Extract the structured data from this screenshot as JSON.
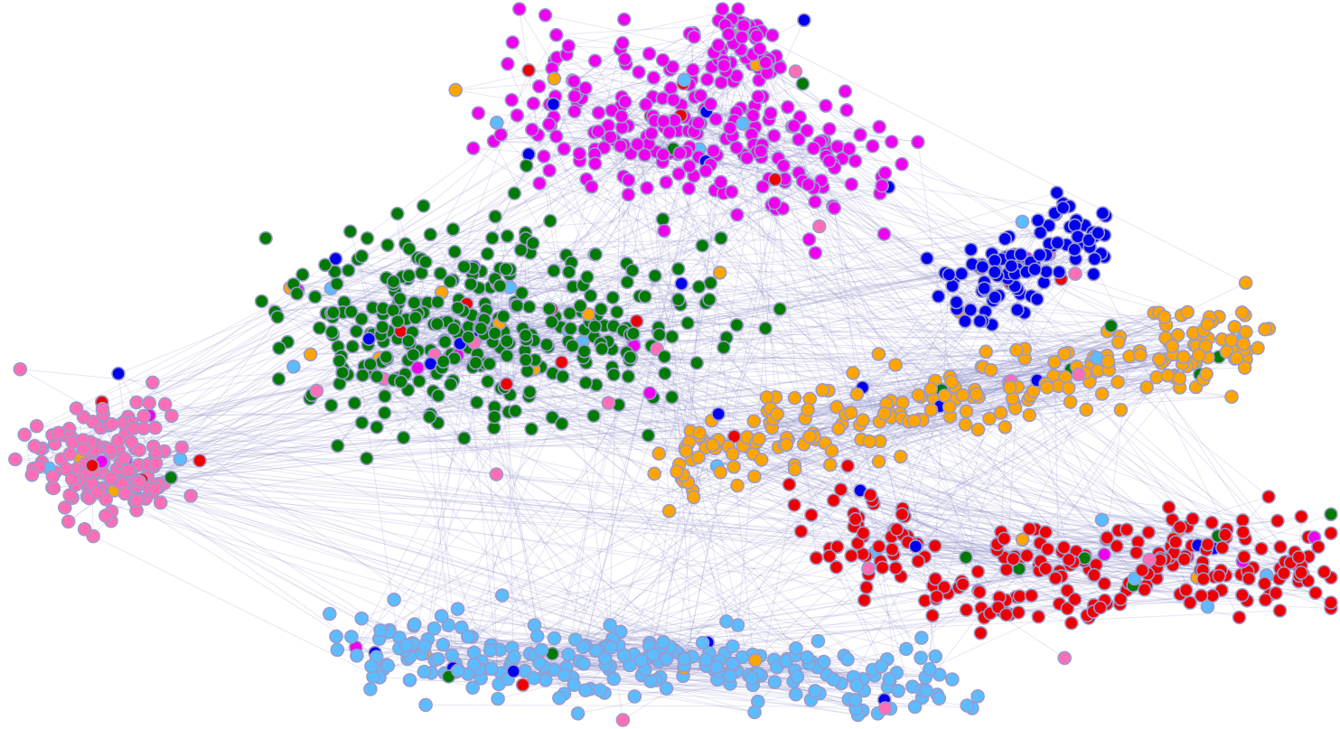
{
  "clusters": [
    {
      "color": "#ee00ee"
    },
    {
      "color": "#007a00"
    },
    {
      "color": "#ff6eb4"
    },
    {
      "color": "#0000ee"
    },
    {
      "color": "#ffa500"
    },
    {
      "color": "#ee0000"
    },
    {
      "color": "#5bbcff"
    }
  ]
}
